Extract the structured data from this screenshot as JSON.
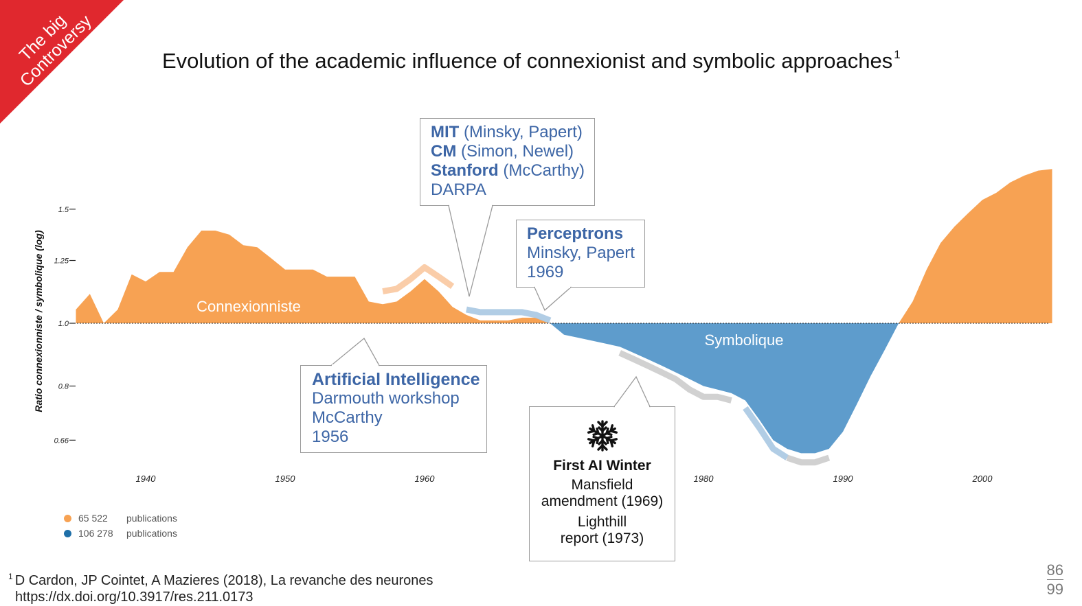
{
  "badge": {
    "line1": "The big",
    "line2": "Controversy",
    "color": "#e0282e"
  },
  "title": "Evolution of the academic influence of connexionist and symbolic approaches",
  "title_sup": "1",
  "chart_data": {
    "type": "area",
    "ylabel": "Ratio connexionniste / symbolique (log)",
    "xlabel": "",
    "y_scale": "log",
    "y_baseline": 1.0,
    "ylim": [
      0.6,
      1.7
    ],
    "xlim": [
      1935,
      2005
    ],
    "x_ticks": [
      1940,
      1950,
      1960,
      1980,
      1990,
      2000
    ],
    "y_ticks": [
      {
        "value": 1.5,
        "label": "1.5"
      },
      {
        "value": 1.25,
        "label": "1.25"
      },
      {
        "value": 1.0,
        "label": "1.0"
      },
      {
        "value": 0.8,
        "label": "0.8"
      },
      {
        "value": 0.66,
        "label": "0.66"
      }
    ],
    "series": [
      {
        "name": "Connexionniste",
        "color": "#f7a253"
      },
      {
        "name": "Symbolique",
        "color": "#5e9ccc"
      }
    ],
    "x": [
      1935,
      1936,
      1937,
      1938,
      1939,
      1940,
      1941,
      1942,
      1943,
      1944,
      1945,
      1946,
      1947,
      1948,
      1949,
      1950,
      1951,
      1952,
      1953,
      1954,
      1955,
      1956,
      1957,
      1958,
      1959,
      1960,
      1961,
      1962,
      1963,
      1964,
      1965,
      1966,
      1967,
      1968,
      1969,
      1970,
      1971,
      1972,
      1973,
      1974,
      1975,
      1976,
      1977,
      1978,
      1979,
      1980,
      1981,
      1982,
      1983,
      1984,
      1985,
      1986,
      1987,
      1988,
      1989,
      1990,
      1991,
      1992,
      1993,
      1994,
      1995,
      1996,
      1997,
      1998,
      1999,
      2000,
      2001,
      2002,
      2003,
      2004,
      2005
    ],
    "y": [
      1.05,
      1.11,
      1.0,
      1.05,
      1.19,
      1.16,
      1.2,
      1.2,
      1.31,
      1.39,
      1.39,
      1.37,
      1.32,
      1.31,
      1.26,
      1.21,
      1.21,
      1.21,
      1.18,
      1.18,
      1.18,
      1.08,
      1.07,
      1.08,
      1.12,
      1.17,
      1.12,
      1.06,
      1.03,
      1.01,
      1.01,
      1.01,
      1.02,
      1.02,
      1.0,
      0.96,
      0.95,
      0.94,
      0.93,
      0.92,
      0.9,
      0.88,
      0.86,
      0.84,
      0.82,
      0.8,
      0.79,
      0.78,
      0.76,
      0.71,
      0.66,
      0.64,
      0.63,
      0.63,
      0.64,
      0.68,
      0.75,
      0.83,
      0.91,
      1.0,
      1.08,
      1.21,
      1.33,
      1.41,
      1.48,
      1.55,
      1.59,
      1.65,
      1.69,
      1.72,
      1.73
    ],
    "ghost_series": [
      {
        "color": "#f9c8a0",
        "x": [
          1957,
          1958,
          1959,
          1960,
          1961,
          1962
        ],
        "y": [
          1.12,
          1.13,
          1.17,
          1.22,
          1.18,
          1.14
        ]
      },
      {
        "color": "#a8c8e2",
        "x": [
          1963,
          1964,
          1965,
          1966,
          1967,
          1968,
          1969
        ],
        "y": [
          1.05,
          1.04,
          1.04,
          1.04,
          1.04,
          1.03,
          1.01
        ]
      },
      {
        "color": "#cccccc",
        "x": [
          1974,
          1975,
          1976,
          1977,
          1978,
          1979,
          1980,
          1981,
          1982
        ],
        "y": [
          0.9,
          0.88,
          0.86,
          0.84,
          0.82,
          0.79,
          0.77,
          0.77,
          0.76
        ]
      },
      {
        "color": "#a8c8e2",
        "x": [
          1983,
          1984,
          1985,
          1986
        ],
        "y": [
          0.74,
          0.69,
          0.64,
          0.62
        ]
      },
      {
        "color": "#cccccc",
        "x": [
          1986,
          1987,
          1988,
          1989
        ],
        "y": [
          0.62,
          0.61,
          0.61,
          0.62
        ]
      }
    ],
    "annotations": [
      "Connexionniste",
      "Symbolique"
    ]
  },
  "callouts": {
    "mit": [
      {
        "bold": "MIT",
        "text": " (Minsky, Papert)"
      },
      {
        "bold": "CM",
        "text": " (Simon, Newel)"
      },
      {
        "bold": "Stanford",
        "text": " (McCarthy)"
      },
      {
        "bold": "",
        "text": "DARPA"
      }
    ],
    "perceptrons": {
      "title": "Perceptrons",
      "line2": "Minsky, Papert",
      "line3": "1969"
    },
    "ai": {
      "title": "Artificial Intelligence",
      "line2": "Darmouth workshop",
      "line3": "McCarthy",
      "line4": "1956"
    },
    "winter": {
      "icon": "snowflake-icon",
      "title": "First AI Winter",
      "line2": "Mansfield",
      "line3": "amendment (1969)",
      "line4": "Lighthill",
      "line5": "report (1973)"
    }
  },
  "legend": [
    {
      "count": "65 522",
      "label": "publications",
      "color": "#f7a253"
    },
    {
      "count": "106 278",
      "label": "publications",
      "color": "#1f6fa8"
    }
  ],
  "footnote": {
    "sup": "1",
    "line1": "D Cardon, JP Cointet, A Mazieres (2018), La revanche des neurones",
    "line2": "https://dx.doi.org/10.3917/res.211.0173"
  },
  "pager": {
    "current": "86",
    "total": "99"
  }
}
